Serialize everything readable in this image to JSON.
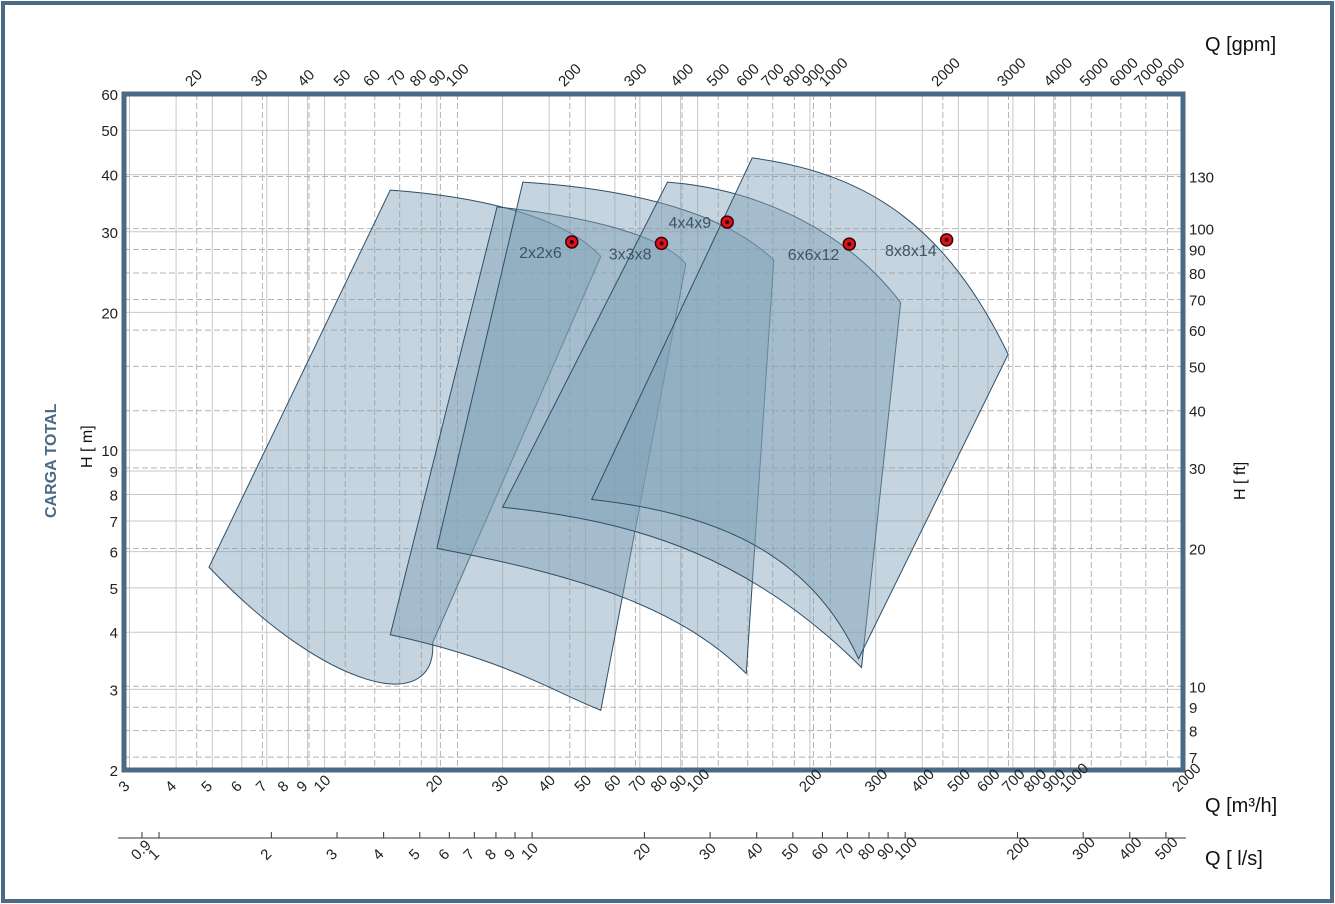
{
  "chart_data": {
    "type": "area",
    "log_scale": true,
    "grid": true,
    "q_m3h": {
      "label": "Q  [m³/h]",
      "range": [
        2.9,
        2000
      ],
      "ticks": [
        3,
        4,
        5,
        6,
        7,
        8,
        9,
        10,
        20,
        30,
        40,
        50,
        60,
        70,
        80,
        90,
        100,
        200,
        300,
        400,
        500,
        600,
        700,
        800,
        900,
        1000,
        2000
      ],
      "tick_labels": [
        "3",
        "4",
        "5",
        "6",
        "7",
        "8",
        "9",
        "10",
        "20",
        "30",
        "40",
        "50",
        "60",
        "70",
        "80",
        "90",
        "100",
        "200",
        "300",
        "400",
        "500",
        "600",
        "700",
        "800",
        "900",
        "1000",
        "2000"
      ]
    },
    "q_ls": {
      "label": "Q  [ l/s]",
      "ticks": [
        0.9,
        1,
        2,
        3,
        4,
        5,
        6,
        7,
        8,
        9,
        10,
        20,
        30,
        40,
        50,
        60,
        70,
        80,
        90,
        100,
        200,
        300,
        400,
        500
      ],
      "tick_labels": [
        "0.9",
        "1",
        "2",
        "3",
        "4",
        "5",
        "6",
        "7",
        "8",
        "9",
        "10",
        "20",
        "30",
        "40",
        "50",
        "60",
        "70",
        "80",
        "90",
        "100",
        "200",
        "300",
        "400",
        "500"
      ]
    },
    "q_gpm": {
      "label": "Q  [gpm]",
      "ticks": [
        20,
        30,
        40,
        50,
        60,
        70,
        80,
        90,
        100,
        200,
        300,
        400,
        500,
        600,
        700,
        800,
        900,
        1000,
        2000,
        3000,
        4000,
        5000,
        6000,
        7000,
        8000
      ],
      "tick_labels": [
        "20",
        "30",
        "40",
        "50",
        "60",
        "70",
        "80",
        "90",
        "100",
        "200",
        "300",
        "400",
        "500",
        "600",
        "700",
        "800",
        "900",
        "1000",
        "2000",
        "3000",
        "4000",
        "5000",
        "6000",
        "7000",
        "8000"
      ]
    },
    "h_m": {
      "label": "H [ m]",
      "range": [
        2,
        60
      ],
      "ticks": [
        2,
        3,
        4,
        5,
        6,
        7,
        8,
        9,
        10,
        20,
        30,
        40,
        50,
        60
      ],
      "tick_labels": [
        "2",
        "3",
        "4",
        "5",
        "6",
        "7",
        "8",
        "9",
        "10",
        "20",
        "30",
        "40",
        "50",
        "60"
      ]
    },
    "h_ft": {
      "label": "H  [ ft]",
      "ticks": [
        7,
        8,
        9,
        10,
        20,
        30,
        40,
        50,
        60,
        70,
        80,
        90,
        100,
        130
      ],
      "tick_labels": [
        "7",
        "8",
        "9",
        "10",
        "20",
        "30",
        "40",
        "50",
        "60",
        "70",
        "80",
        "90",
        "100",
        "130"
      ]
    },
    "ylabel_title": "CARGA TOTAL",
    "series": [
      {
        "name": "2x2x6",
        "duty_point": [
          46,
          28.5
        ],
        "top_edge": [
          [
            15,
            37
          ],
          [
            30,
            34.5
          ],
          [
            46,
            30.5
          ],
          [
            55,
            26.5
          ]
        ],
        "bottom_edge": [
          [
            3.2,
            3.4
          ],
          [
            10,
            3.0
          ],
          [
            20,
            2.6
          ],
          [
            29,
            2.3
          ]
        ],
        "bottom_left": [
          4.9,
          5.55
        ],
        "bottom_cusp": [
          19.5,
          3.8
        ]
      },
      {
        "name": "3x3x8",
        "duty_point": [
          80,
          28.3
        ],
        "top_edge": [
          [
            29,
            34
          ],
          [
            50,
            31.5
          ],
          [
            80,
            29
          ],
          [
            93,
            25.5
          ]
        ],
        "bottom_edge": [
          [
            15,
            3.9
          ],
          [
            30,
            3.5
          ],
          [
            40,
            3.0
          ],
          [
            55,
            2.7
          ]
        ],
        "bottom_left": [
          15,
          3.95
        ],
        "bottom_cusp": [
          55,
          2.7
        ]
      },
      {
        "name": "4x4x9",
        "duty_point": [
          120,
          31.5
        ],
        "top_edge": [
          [
            34,
            38.5
          ],
          [
            70,
            36
          ],
          [
            120,
            32
          ],
          [
            160,
            26
          ]
        ],
        "bottom_edge": [
          [
            20,
            6.1
          ],
          [
            50,
            5.3
          ],
          [
            90,
            4.5
          ],
          [
            135,
            3.25
          ]
        ],
        "bottom_left": [
          20,
          6.1
        ],
        "bottom_cusp": [
          135,
          3.25
        ]
      },
      {
        "name": "6x6x12",
        "duty_point": [
          255,
          28.2
        ],
        "top_edge": [
          [
            83,
            38.5
          ],
          [
            150,
            36
          ],
          [
            255,
            29
          ],
          [
            350,
            21
          ]
        ],
        "bottom_edge": [
          [
            30,
            7.5
          ],
          [
            70,
            7
          ],
          [
            140,
            5.8
          ],
          [
            275,
            3.35
          ]
        ],
        "bottom_left": [
          30,
          7.5
        ],
        "bottom_cusp": [
          275,
          3.35
        ]
      },
      {
        "name": "8x8x14",
        "duty_point": [
          465,
          28.8
        ],
        "top_edge": [
          [
            140,
            43.5
          ],
          [
            290,
            39
          ],
          [
            465,
            30
          ],
          [
            680,
            16.2
          ]
        ],
        "bottom_edge": [
          [
            52,
            7.8
          ],
          [
            110,
            7.3
          ],
          [
            200,
            6
          ],
          [
            270,
            3.5
          ]
        ],
        "bottom_left": [
          52,
          7.8
        ],
        "bottom_cusp": [
          270,
          3.5
        ]
      }
    ],
    "colors": {
      "area_fill": "#7f9fb5",
      "area_stroke": "#2f4f68",
      "duty_point": "#d9141e",
      "frame": "#4a6a86"
    }
  }
}
